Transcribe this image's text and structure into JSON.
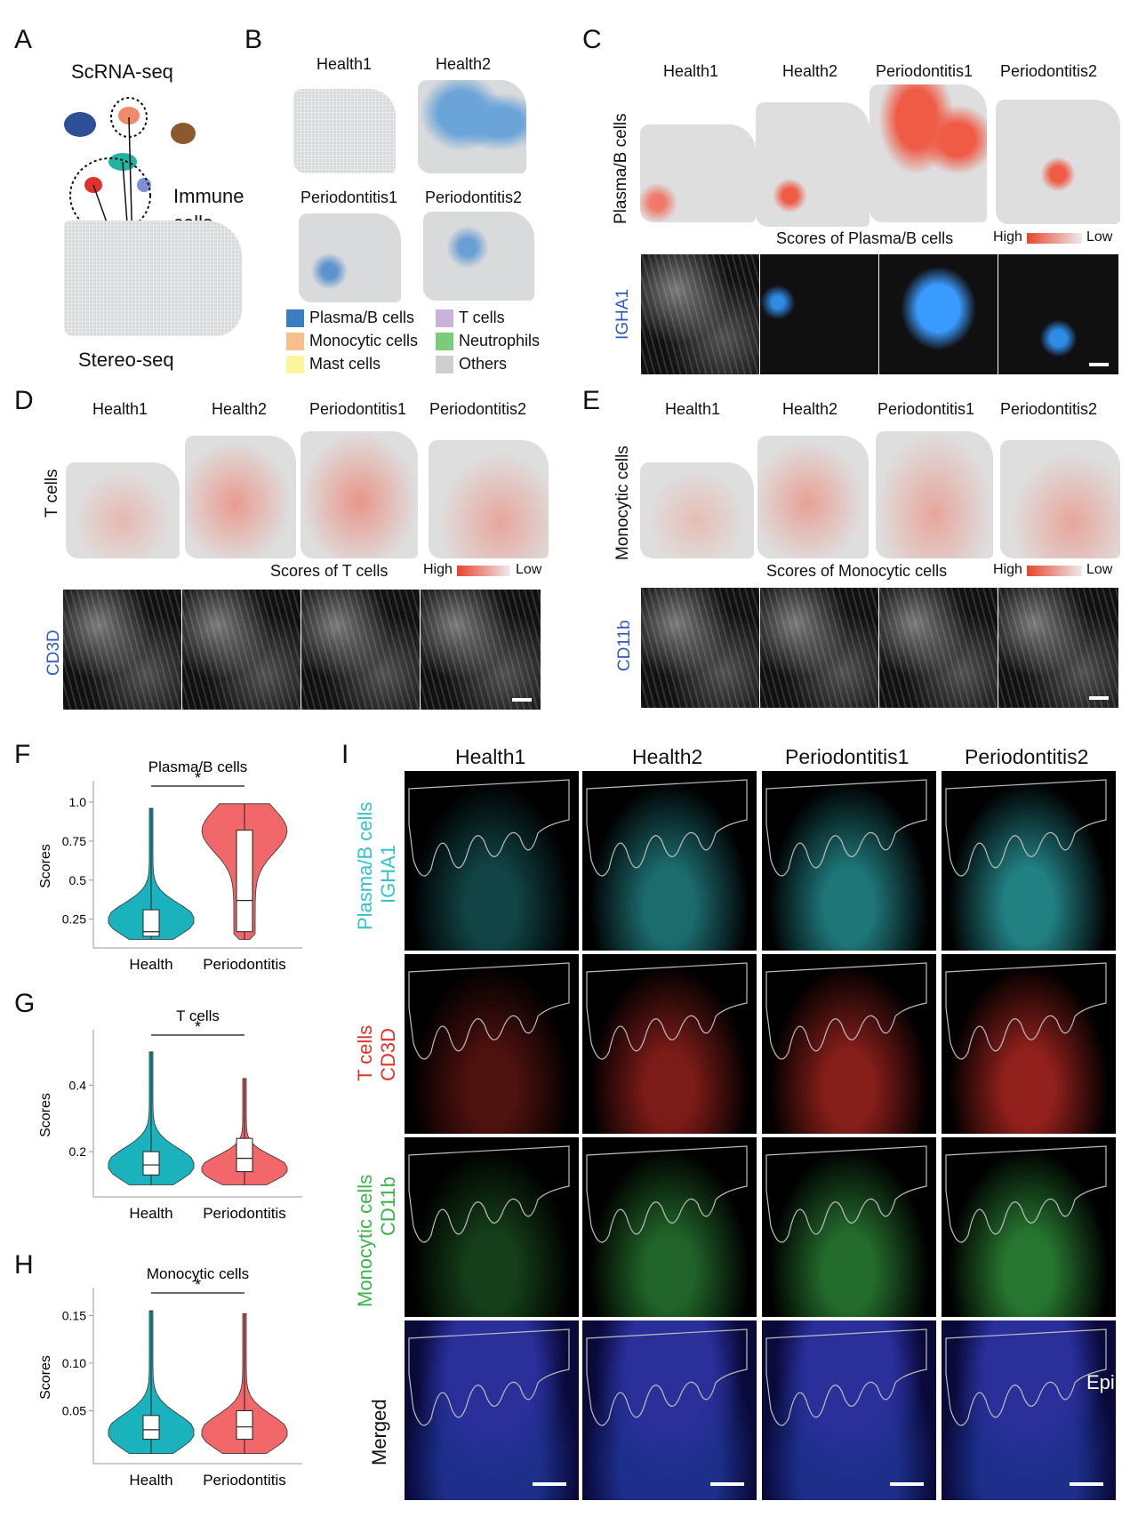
{
  "panels": {
    "A": {
      "letter": "A",
      "top": "ScRNA-seq",
      "immune": "Immune",
      "cells": "cells",
      "bottom": "Stereo-seq"
    },
    "B": {
      "letter": "B",
      "samples": [
        "Health1",
        "Health2",
        "Periodontitis1",
        "Periodontitis2"
      ],
      "legend": [
        {
          "label": "Plasma/B cells",
          "color": "#3a7dc0"
        },
        {
          "label": "T cells",
          "color": "#c9b3d9"
        },
        {
          "label": "Monocytic cells",
          "color": "#f7bf8a"
        },
        {
          "label": "Neutrophils",
          "color": "#7ccb7a"
        },
        {
          "label": "Mast cells",
          "color": "#fbf59a"
        },
        {
          "label": "Others",
          "color": "#cfcfcf"
        }
      ]
    },
    "C": {
      "letter": "C",
      "samples": [
        "Health1",
        "Health2",
        "Periodontitis1",
        "Periodontitis2"
      ],
      "ylabel": "Plasma/B cells",
      "scores": "Scores of Plasma/B cells",
      "high": "High",
      "low": "Low",
      "marker": "IGHA1"
    },
    "D": {
      "letter": "D",
      "samples": [
        "Health1",
        "Health2",
        "Periodontitis1",
        "Periodontitis2"
      ],
      "ylabel": "T cells",
      "scores": "Scores of T cells",
      "high": "High",
      "low": "Low",
      "marker": "CD3D"
    },
    "E": {
      "letter": "E",
      "samples": [
        "Health1",
        "Health2",
        "Periodontitis1",
        "Periodontitis2"
      ],
      "ylabel": "Monocytic cells",
      "scores": "Scores of Monocytic cells",
      "high": "High",
      "low": "Low",
      "marker": "CD11b"
    },
    "F": {
      "letter": "F"
    },
    "G": {
      "letter": "G"
    },
    "H": {
      "letter": "H"
    },
    "I": {
      "letter": "I",
      "samples": [
        "Health1",
        "Health2",
        "Periodontitis1",
        "Periodontitis2"
      ],
      "rows": [
        {
          "line1": "Plasma/B cells",
          "line2": "IGHA1",
          "color": "#33c4c8"
        },
        {
          "line1": "T cells",
          "line2": "CD3D",
          "color": "#e0322b"
        },
        {
          "line1": "Monocytic cells",
          "line2": "CD11b",
          "color": "#3bb54a"
        },
        {
          "line1": "Merged",
          "line2": "",
          "color": "#111111"
        }
      ],
      "epi": "Epi"
    }
  },
  "chart_data": [
    {
      "type": "violin",
      "panel": "F",
      "title": "Plasma/B cells",
      "ylabel": "Scores",
      "categories": [
        "Health",
        "Periodontitis"
      ],
      "yticks": [
        "1.0",
        "0.75",
        "0.5",
        "0.25"
      ],
      "ylim": [
        0.1,
        1.08
      ],
      "significance": "*",
      "colors": [
        "#1ab3bd",
        "#f2676a"
      ],
      "series": [
        {
          "name": "Health",
          "min": 0.12,
          "q1": 0.14,
          "median": 0.17,
          "q3": 0.31,
          "max": 0.96
        },
        {
          "name": "Periodontitis",
          "min": 0.12,
          "q1": 0.17,
          "median": 0.37,
          "q3": 0.82,
          "max": 0.99
        }
      ]
    },
    {
      "type": "violin",
      "panel": "G",
      "title": "T cells",
      "ylabel": "Scores",
      "categories": [
        "Health",
        "Periodontitis"
      ],
      "yticks": [
        "0.4",
        "0.2"
      ],
      "ylim": [
        0.08,
        0.54
      ],
      "significance": "*",
      "colors": [
        "#1ab3bd",
        "#f2676a"
      ],
      "series": [
        {
          "name": "Health",
          "min": 0.1,
          "q1": 0.13,
          "median": 0.16,
          "q3": 0.2,
          "max": 0.5
        },
        {
          "name": "Periodontitis",
          "min": 0.1,
          "q1": 0.14,
          "median": 0.18,
          "q3": 0.24,
          "max": 0.42
        }
      ]
    },
    {
      "type": "violin",
      "panel": "H",
      "title": "Monocytic cells",
      "ylabel": "Scores",
      "categories": [
        "Health",
        "Periodontitis"
      ],
      "yticks": [
        "0.15",
        "0.10",
        "0.05"
      ],
      "ylim": [
        0.0,
        0.17
      ],
      "significance": "*",
      "colors": [
        "#1ab3bd",
        "#f2676a"
      ],
      "series": [
        {
          "name": "Health",
          "min": 0.005,
          "q1": 0.02,
          "median": 0.03,
          "q3": 0.045,
          "max": 0.155
        },
        {
          "name": "Periodontitis",
          "min": 0.005,
          "q1": 0.02,
          "median": 0.033,
          "q3": 0.05,
          "max": 0.152
        }
      ]
    }
  ]
}
